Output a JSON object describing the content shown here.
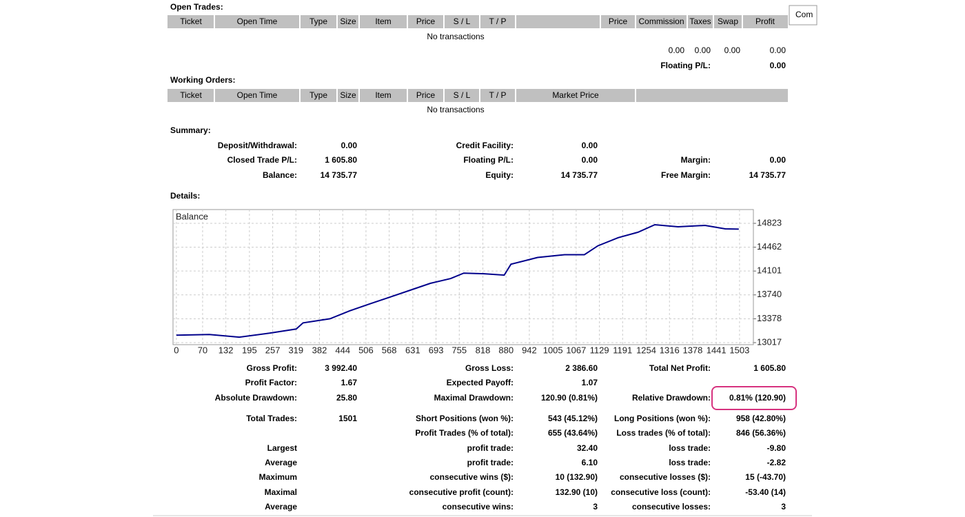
{
  "open_trades": {
    "title": "Open Trades:",
    "columns": [
      "Ticket",
      "Open Time",
      "Type",
      "Size",
      "Item",
      "Price",
      "S / L",
      "T / P",
      "Price",
      "Commission",
      "Taxes",
      "Swap",
      "Profit"
    ],
    "empty": "No transactions",
    "totals": [
      "0.00",
      "0.00",
      "0.00",
      "0.00"
    ],
    "floating_label": "Floating P/L:",
    "floating_value": "0.00"
  },
  "working_orders": {
    "title": "Working Orders:",
    "columns": [
      "Ticket",
      "Open Time",
      "Type",
      "Size",
      "Item",
      "Price",
      "S / L",
      "T / P",
      "Market Price"
    ],
    "empty": "No transactions"
  },
  "summary": {
    "title": "Summary:",
    "rows": [
      {
        "a": [
          "Deposit/Withdrawal:",
          "0.00"
        ],
        "b": [
          "Credit Facility:",
          "0.00"
        ]
      },
      {
        "a": [
          "Closed Trade P/L:",
          "1 605.80"
        ],
        "b": [
          "Floating P/L:",
          "0.00"
        ],
        "c": [
          "Margin:",
          "0.00"
        ]
      },
      {
        "a": [
          "Balance:",
          "14 735.77"
        ],
        "b": [
          "Equity:",
          "14 735.77"
        ],
        "c": [
          "Free Margin:",
          "14 735.77"
        ]
      }
    ]
  },
  "details": {
    "title": "Details:",
    "chart": {
      "type": "line",
      "legend": "Balance",
      "color": "#00008b",
      "grid": true,
      "x": [
        0,
        88,
        168,
        249,
        320,
        338,
        410,
        463,
        517,
        571,
        624,
        678,
        732,
        767,
        821,
        875,
        893,
        964,
        1036,
        1089,
        1125,
        1179,
        1232,
        1277,
        1339,
        1411,
        1465,
        1501
      ],
      "values": [
        13130,
        13141,
        13100,
        13160,
        13223,
        13316,
        13378,
        13500,
        13605,
        13708,
        13811,
        13915,
        13987,
        14070,
        14060,
        14039,
        14204,
        14307,
        14348,
        14348,
        14483,
        14606,
        14689,
        14802,
        14771,
        14792,
        14740,
        14736
      ],
      "xlim": [
        -9,
        1540
      ],
      "ylim": [
        12986,
        15032
      ],
      "xticks": [
        0,
        70,
        132,
        195,
        257,
        319,
        382,
        444,
        506,
        568,
        631,
        693,
        755,
        818,
        880,
        942,
        1005,
        1067,
        1129,
        1191,
        1254,
        1316,
        1378,
        1441,
        1503
      ],
      "yticks": [
        13017,
        13378,
        13740,
        14101,
        14462,
        14823
      ]
    },
    "rows": [
      {
        "a": [
          "Gross Profit:",
          "3 992.40"
        ],
        "b": [
          "Gross Loss:",
          "2 386.60"
        ],
        "c": [
          "Total Net Profit:",
          "1 605.80"
        ]
      },
      {
        "a": [
          "Profit Factor:",
          "1.67"
        ],
        "b": [
          "Expected Payoff:",
          "1.07"
        ]
      },
      {
        "a": [
          "Absolute Drawdown:",
          "25.80"
        ],
        "b": [
          "Maximal Drawdown:",
          "120.90 (0.81%)"
        ],
        "c": [
          "Relative Drawdown:",
          "0.81% (120.90)"
        ]
      },
      {
        "a": [
          "Total Trades:",
          "1501"
        ],
        "b": [
          "Short Positions (won %):",
          "543 (45.12%)"
        ],
        "c": [
          "Long Positions (won %):",
          "958 (42.80%)"
        ]
      },
      {
        "b": [
          "Profit Trades (% of total):",
          "655 (43.64%)"
        ],
        "c": [
          "Loss trades (% of total):",
          "846 (56.36%)"
        ]
      },
      {
        "a": [
          "Largest"
        ],
        "b": [
          "profit trade:",
          "32.40"
        ],
        "c": [
          "loss trade:",
          "-9.80"
        ]
      },
      {
        "a": [
          "Average"
        ],
        "b": [
          "profit trade:",
          "6.10"
        ],
        "c": [
          "loss trade:",
          "-2.82"
        ]
      },
      {
        "a": [
          "Maximum"
        ],
        "b": [
          "consecutive wins ($):",
          "10 (132.90)"
        ],
        "c": [
          "consecutive losses ($):",
          "15 (-43.70)"
        ]
      },
      {
        "a": [
          "Maximal"
        ],
        "b": [
          "consecutive profit (count):",
          "132.90 (10)"
        ],
        "c": [
          "consecutive loss (count):",
          "-53.40 (14)"
        ]
      },
      {
        "a": [
          "Average"
        ],
        "b": [
          "consecutive wins:",
          "3"
        ],
        "c": [
          "consecutive losses:",
          "3"
        ]
      }
    ]
  },
  "button": "Com"
}
